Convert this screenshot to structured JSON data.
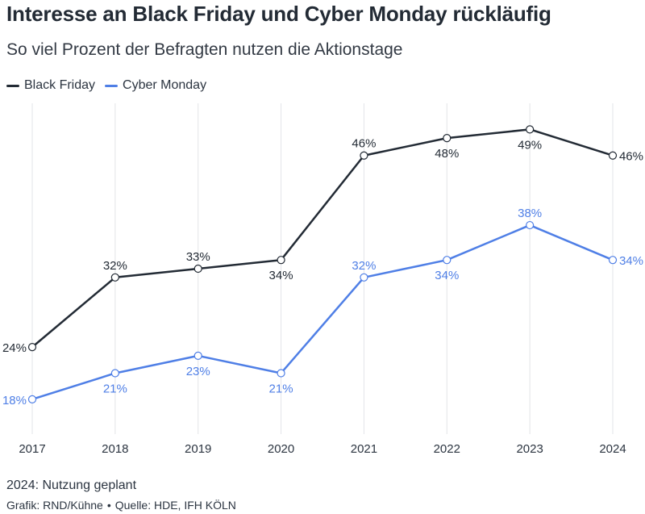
{
  "chart_data": {
    "type": "line",
    "title": "Interesse an Black Friday und Cyber Monday rückläufig",
    "subtitle": "So viel Prozent der Befragten nutzen die Aktionstage",
    "x": [
      "2017",
      "2018",
      "2019",
      "2020",
      "2021",
      "2022",
      "2023",
      "2024"
    ],
    "ylim": [
      14,
      52
    ],
    "grid": "vertical",
    "legend_position": "top-left",
    "series": [
      {
        "name": "Black Friday",
        "color": "#232b35",
        "values": [
          24,
          32,
          33,
          34,
          46,
          48,
          49,
          46
        ],
        "labels": [
          "24%",
          "32%",
          "33%",
          "34%",
          "46%",
          "48%",
          "49%",
          "46%"
        ],
        "label_side": [
          "left",
          "above",
          "above",
          "below",
          "above",
          "below",
          "below",
          "right"
        ]
      },
      {
        "name": "Cyber Monday",
        "color": "#4f7fe6",
        "values": [
          18,
          21,
          23,
          21,
          32,
          34,
          38,
          34
        ],
        "labels": [
          "18%",
          "21%",
          "23%",
          "21%",
          "32%",
          "34%",
          "38%",
          "34%"
        ],
        "label_side": [
          "left",
          "below",
          "below",
          "below",
          "above",
          "below",
          "above",
          "right"
        ]
      }
    ],
    "note": "2024: Nutzung geplant",
    "source_credit": "Grafik: RND/Kühne",
    "source": "Quelle: HDE, IFH KÖLN"
  }
}
